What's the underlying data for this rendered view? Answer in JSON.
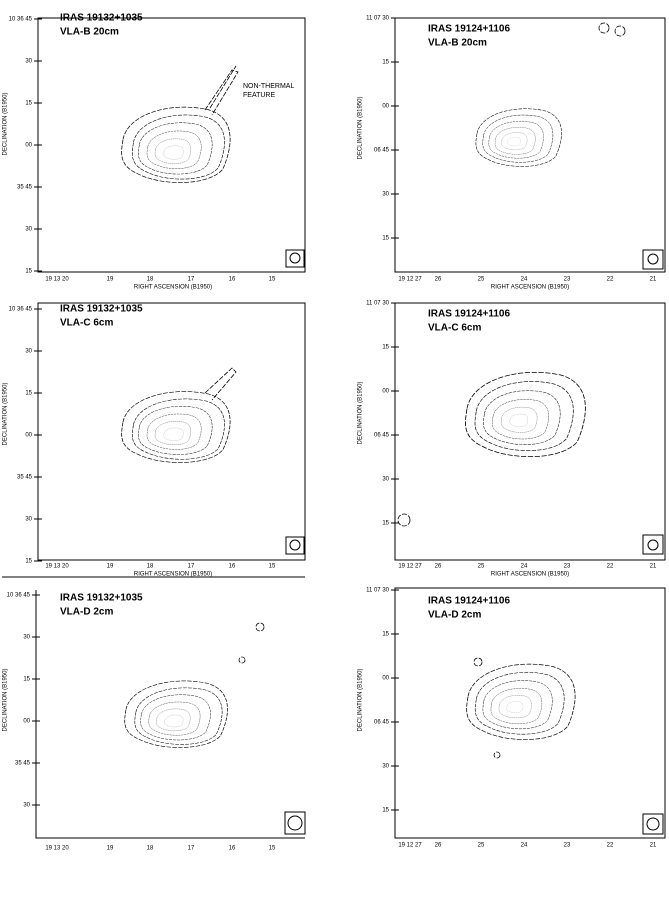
{
  "panels": [
    {
      "title": "IRAS 19132+1035",
      "config": "VLA-B  20cm",
      "annotation": [
        "NON-THERMAL",
        "FEATURE"
      ],
      "ylabel": "DECLINATION (B1950)",
      "xlabel": "RIGHT ASCENSION (B1950)",
      "yticks": [
        "10 36 45",
        "30",
        "15",
        "00",
        "35 45",
        "30",
        "15"
      ],
      "xticks": [
        "19 13 20",
        "19",
        "18",
        "17",
        "16",
        "15"
      ]
    },
    {
      "title": "IRAS 19124+1106",
      "config": "VLA-B  20cm",
      "ylabel": "DECLINATION (B1950)",
      "xlabel": "RIGHT ASCENSION (B1950)",
      "yticks": [
        "11 07 30",
        "15",
        "00",
        "06 45",
        "30",
        "15"
      ],
      "xticks": [
        "19 12 27",
        "26",
        "25",
        "24",
        "23",
        "22",
        "21"
      ]
    },
    {
      "title": "IRAS 19132+1035",
      "config": "VLA-C  6cm",
      "ylabel": "DECLINATION (B1950)",
      "xlabel": "RIGHT ASCENSION (B1950)",
      "yticks": [
        "10 36 45",
        "30",
        "15",
        "00",
        "35 45",
        "30",
        "15"
      ],
      "xticks": [
        "19 13 20",
        "19",
        "18",
        "17",
        "16",
        "15"
      ]
    },
    {
      "title": "IRAS 19124+1106",
      "config": "VLA-C  6cm",
      "ylabel": "DECLINATION (B1950)",
      "xlabel": "RIGHT ASCENSION (B1950)",
      "yticks": [
        "11 07 30",
        "15",
        "00",
        "06 45",
        "30",
        "15"
      ],
      "xticks": [
        "19 12 27",
        "26",
        "25",
        "24",
        "23",
        "22",
        "21"
      ]
    },
    {
      "title": "IRAS 19132+1035",
      "config": "VLA-D  2cm",
      "ylabel": "DECLINATION (B1950)",
      "yticks": [
        "10 36 45",
        "30",
        "15",
        "00",
        "35 45",
        "30"
      ],
      "xticks": [
        "19 13 20",
        "19",
        "18",
        "17",
        "16",
        "15"
      ]
    },
    {
      "title": "IRAS 19124+1106",
      "config": "VLA-D  2cm",
      "ylabel": "DECLINATION (B1950)",
      "yticks": [
        "11 07 30",
        "15",
        "00",
        "06 45",
        "30",
        "15"
      ],
      "xticks": [
        "19 12 27",
        "26",
        "25",
        "24",
        "23",
        "22",
        "21"
      ]
    }
  ]
}
